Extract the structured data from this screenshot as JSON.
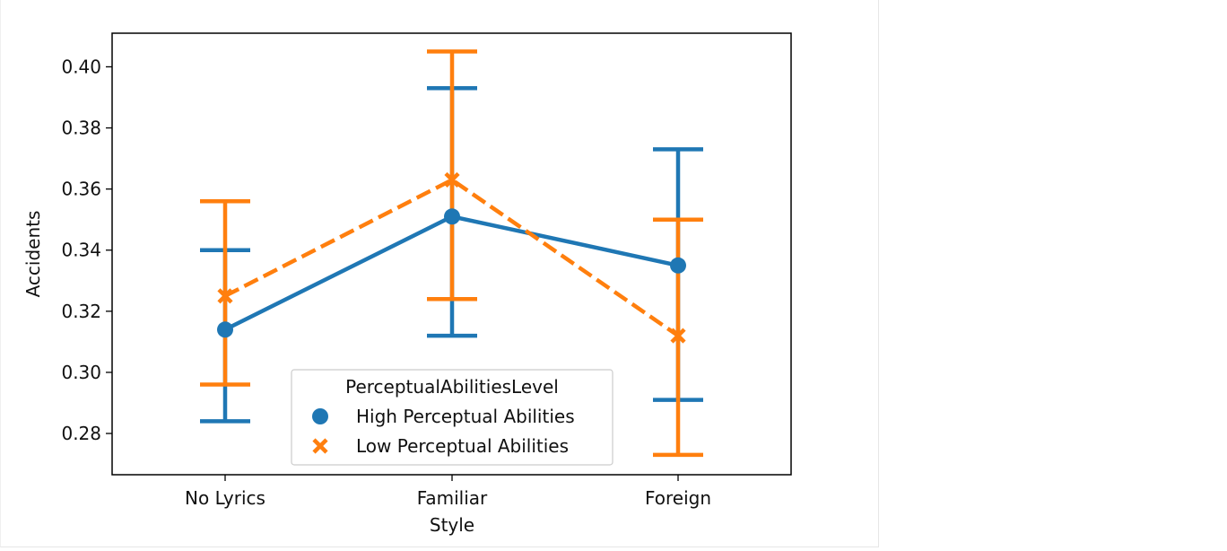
{
  "chart_data": {
    "type": "line",
    "categories": [
      "No Lyrics",
      "Familiar",
      "Foreign"
    ],
    "xlabel": "Style",
    "ylabel": "Accidents",
    "ylim": [
      0.2665,
      0.411
    ],
    "yticks": [
      0.28,
      0.3,
      0.32,
      0.34,
      0.36,
      0.38,
      0.4
    ],
    "ytick_labels": [
      "0.28",
      "0.30",
      "0.32",
      "0.34",
      "0.36",
      "0.38",
      "0.40"
    ],
    "grid": false,
    "legend": {
      "title": "PerceptualAbilitiesLevel",
      "placement": "lower-center"
    },
    "series": [
      {
        "name": "High Perceptual Abilities",
        "color": "#1f77b4",
        "marker": "circle",
        "linestyle": "solid",
        "values": [
          0.314,
          0.351,
          0.335
        ],
        "ci_low": [
          0.284,
          0.312,
          0.291
        ],
        "ci_high": [
          0.34,
          0.393,
          0.373
        ]
      },
      {
        "name": "Low Perceptual Abilities",
        "color": "#ff7f0e",
        "marker": "x",
        "linestyle": "dashed",
        "values": [
          0.325,
          0.363,
          0.312
        ],
        "ci_low": [
          0.296,
          0.324,
          0.273
        ],
        "ci_high": [
          0.356,
          0.405,
          0.35
        ]
      }
    ]
  }
}
